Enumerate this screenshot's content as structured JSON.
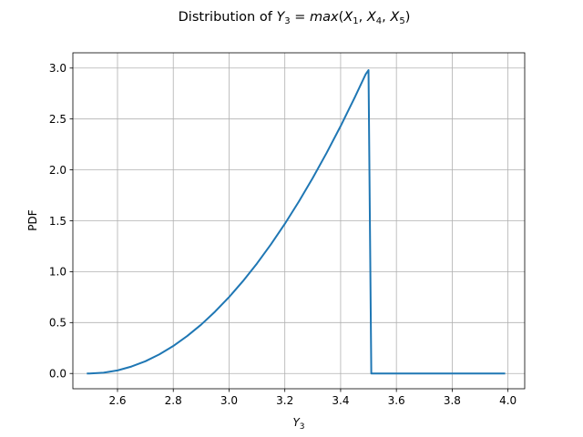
{
  "chart_data": {
    "type": "line",
    "title_prefix": "Distribution of ",
    "title_math": "Y",
    "title_sub": "3",
    "title_eq": " = max(X",
    "title_parts": [
      "1",
      "4",
      "5"
    ],
    "xlabel_main": "Y",
    "xlabel_sub": "3",
    "ylabel": "PDF",
    "xlim": [
      2.44,
      4.06
    ],
    "ylim": [
      -0.15,
      3.15
    ],
    "xticks": [
      2.6,
      2.8,
      3.0,
      3.2,
      3.4,
      3.6,
      3.8,
      4.0
    ],
    "xtick_labels": [
      "2.6",
      "2.8",
      "3.0",
      "3.2",
      "3.4",
      "3.6",
      "3.8",
      "4.0"
    ],
    "yticks": [
      0.0,
      0.5,
      1.0,
      1.5,
      2.0,
      2.5,
      3.0
    ],
    "ytick_labels": [
      "0.0",
      "0.5",
      "1.0",
      "1.5",
      "2.0",
      "2.5",
      "3.0"
    ],
    "grid": true,
    "line_color": "#1f77b4",
    "series": [
      {
        "x": [
          2.49,
          2.5,
          2.55,
          2.6,
          2.65,
          2.7,
          2.75,
          2.8,
          2.85,
          2.9,
          2.95,
          3.0,
          3.05,
          3.1,
          3.15,
          3.2,
          3.25,
          3.3,
          3.35,
          3.4,
          3.45,
          3.49,
          3.5,
          3.51,
          3.6,
          3.7,
          3.8,
          3.9,
          3.99
        ],
        "y": [
          0.0,
          0.0,
          0.008,
          0.03,
          0.068,
          0.12,
          0.188,
          0.27,
          0.368,
          0.48,
          0.608,
          0.75,
          0.908,
          1.08,
          1.268,
          1.47,
          1.688,
          1.92,
          2.168,
          2.43,
          2.708,
          2.94,
          2.98,
          0.0,
          0.0,
          0.0,
          0.0,
          0.0,
          0.0
        ]
      }
    ]
  }
}
